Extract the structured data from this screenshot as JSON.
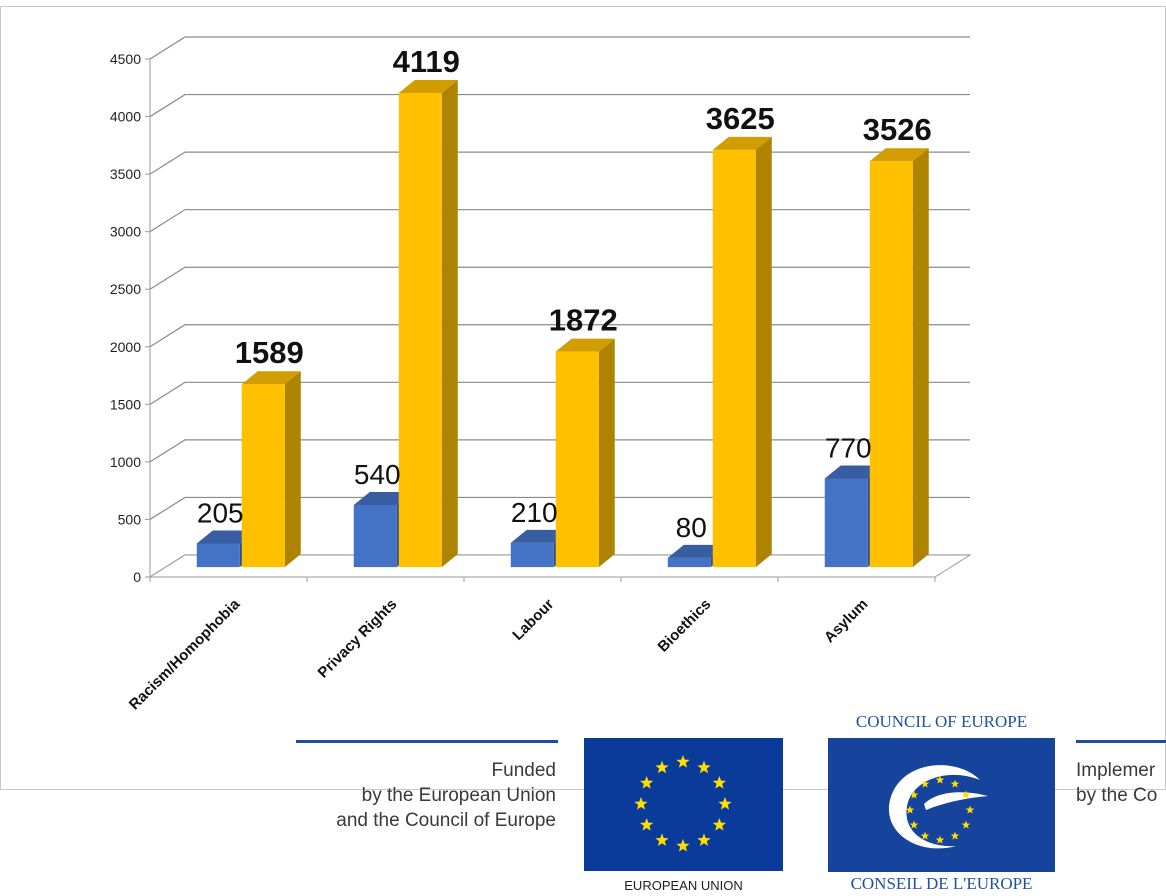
{
  "chart_data": {
    "type": "bar",
    "categories": [
      "Racism/Homophobia",
      "Privacy Rights",
      "Labour",
      "Bioethics",
      "Asylum"
    ],
    "series": [
      {
        "values": [
          205,
          540,
          210,
          80,
          770
        ],
        "color": "#4472c4"
      },
      {
        "values": [
          1589,
          4119,
          1872,
          3625,
          3526
        ],
        "color": "#ffc000"
      }
    ],
    "ylim": [
      0,
      4500
    ],
    "yticks": [
      0,
      500,
      1000,
      1500,
      2000,
      2500,
      3000,
      3500,
      4000,
      4500
    ],
    "grid": true,
    "style": "3d-column"
  },
  "footer": {
    "funded_line1": "Funded",
    "funded_line2": "by the European Union",
    "funded_line3": "and the Council of Europe",
    "implemented_line1": "Implemer",
    "implemented_line2": "by the Co",
    "eu_caption": "EUROPEAN UNION",
    "coe_top": "COUNCIL OF EUROPE",
    "coe_bottom": "CONSEIL DE L'EUROPE",
    "colors": {
      "eu_blue": "#0b3b9a",
      "eu_star": "#ffdd00",
      "coe_blue": "#16439b"
    }
  }
}
